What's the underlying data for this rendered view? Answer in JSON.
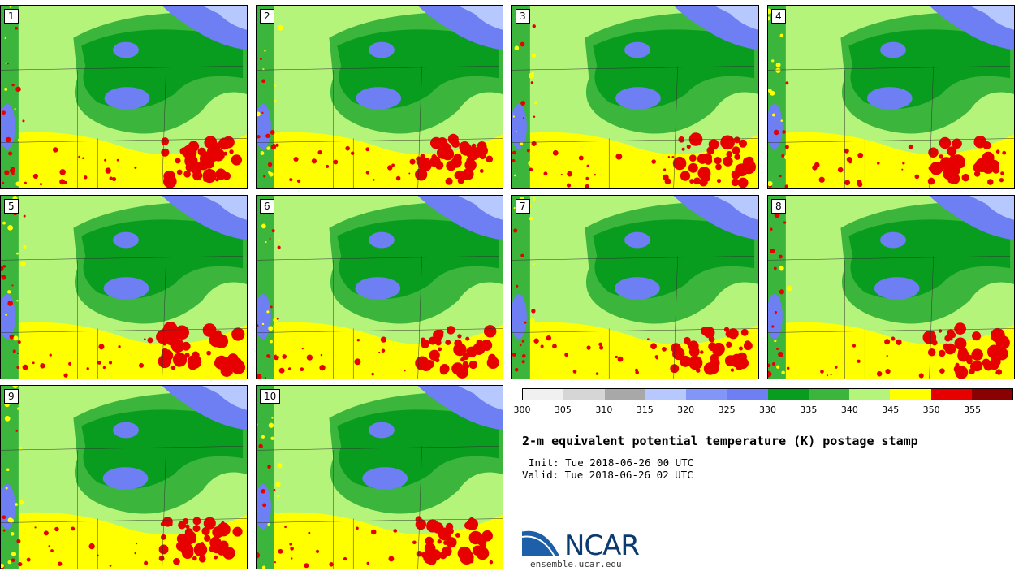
{
  "stamps": [
    {
      "label": "1"
    },
    {
      "label": "2"
    },
    {
      "label": "3"
    },
    {
      "label": "4"
    },
    {
      "label": "5"
    },
    {
      "label": "6"
    },
    {
      "label": "7"
    },
    {
      "label": "8"
    },
    {
      "label": "9"
    },
    {
      "label": "10"
    }
  ],
  "colorbar": {
    "colors": [
      "#f0f0f0",
      "#d6d6d6",
      "#a8a8a8",
      "#b7c8ff",
      "#8296f7",
      "#6d7ff2",
      "#089d1e",
      "#3bb53b",
      "#b4f47a",
      "#ffff00",
      "#e60000",
      "#8b0000"
    ],
    "ticks": [
      "300",
      "305",
      "310",
      "315",
      "320",
      "325",
      "330",
      "335",
      "340",
      "345",
      "350",
      "355"
    ]
  },
  "title": "2-m equivalent potential temperature (K) postage stamp",
  "init": "Init: Tue 2018-06-26 00 UTC",
  "valid": "Valid: Tue 2018-06-26 02 UTC",
  "logo": {
    "text": "NCAR",
    "url": "ensemble.ucar.edu"
  }
}
